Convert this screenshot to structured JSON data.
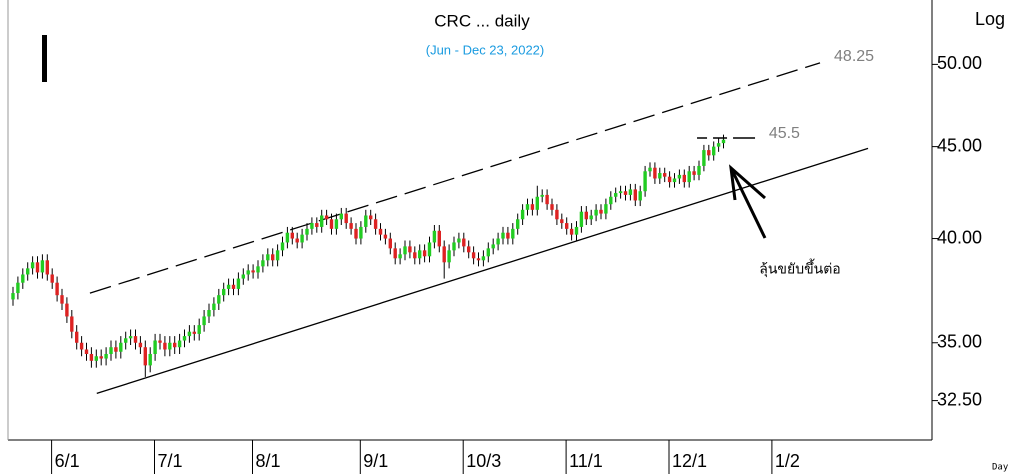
{
  "chart_data": {
    "type": "candlestick",
    "title": "CRC ... daily",
    "subtitle": "(Jun - Dec 23, 2022)",
    "scale_label": "Log",
    "period_label": "Day",
    "log_scale": true,
    "grid": false,
    "up_color": "#22cc22",
    "down_color": "#dd2222",
    "wick_color": "#000000",
    "ylim": [
      30.9,
      54.3
    ],
    "yticks": [
      {
        "value": 50,
        "label": "50.00"
      },
      {
        "value": 45,
        "label": "45.00"
      },
      {
        "value": 40,
        "label": "40.00"
      },
      {
        "value": 35,
        "label": "35.00"
      },
      {
        "value": 32.5,
        "label": "32.50"
      }
    ],
    "categories": [
      null,
      null,
      null,
      null,
      "6/1",
      null,
      null,
      null,
      null,
      null,
      null,
      null,
      null,
      null,
      null,
      null,
      null,
      null,
      null,
      null,
      null,
      null,
      null,
      null,
      null,
      "7/1",
      null,
      null,
      null,
      null,
      null,
      null,
      null,
      null,
      null,
      null,
      null,
      null,
      null,
      null,
      null,
      null,
      null,
      null,
      null,
      "8/1",
      null,
      null,
      null,
      null,
      null,
      null,
      null,
      null,
      null,
      null,
      null,
      null,
      null,
      null,
      null,
      null,
      null,
      null,
      null,
      null,
      null,
      "9/1",
      null,
      null,
      null,
      null,
      null,
      null,
      null,
      null,
      null,
      null,
      null,
      null,
      null,
      null,
      null,
      null,
      null,
      null,
      null,
      null,
      "10/3",
      null,
      null,
      null,
      null,
      null,
      null,
      null,
      null,
      null,
      null,
      null,
      null,
      null,
      null,
      null,
      null,
      null,
      null,
      null,
      null,
      "11/1",
      null,
      null,
      null,
      null,
      null,
      null,
      null,
      null,
      null,
      null,
      null,
      null,
      null,
      null,
      null,
      null,
      null,
      null,
      null,
      null,
      "12/1",
      null,
      null,
      null,
      null,
      null,
      null,
      null,
      null,
      null,
      null,
      null,
      null,
      null,
      null,
      null,
      null,
      null,
      null,
      null,
      null,
      "1/2"
    ],
    "open": [
      37.0,
      37.3,
      37.8,
      38.2,
      38.5,
      38.8,
      38.3,
      38.9,
      38.2,
      37.8,
      37.2,
      36.8,
      36.2,
      35.5,
      35.0,
      34.7,
      34.5,
      34.2,
      34.4,
      34.3,
      34.5,
      34.8,
      34.6,
      35.0,
      35.2,
      35.3,
      35.0,
      34.8,
      34.0,
      34.5,
      35.1,
      35.0,
      34.7,
      35.0,
      34.8,
      35.1,
      35.3,
      35.5,
      35.4,
      35.8,
      36.2,
      36.5,
      36.8,
      37.2,
      37.5,
      37.7,
      37.5,
      38.0,
      38.2,
      38.4,
      38.3,
      38.6,
      38.9,
      39.2,
      38.9,
      39.4,
      39.8,
      40.3,
      40.0,
      39.8,
      40.2,
      40.5,
      40.8,
      40.6,
      41.2,
      41.0,
      40.5,
      41.0,
      41.3,
      40.8,
      40.5,
      40.0,
      40.6,
      41.2,
      41.0,
      40.5,
      40.2,
      40.0,
      39.5,
      39.0,
      39.2,
      39.6,
      39.3,
      39.0,
      39.4,
      39.1,
      39.8,
      40.4,
      39.6,
      38.8,
      39.4,
      39.8,
      40.0,
      39.6,
      39.3,
      39.0,
      38.9,
      39.1,
      39.5,
      39.7,
      40.0,
      40.3,
      40.0,
      40.5,
      41.0,
      41.5,
      41.8,
      41.5,
      42.2,
      42.3,
      41.8,
      41.5,
      41.0,
      40.8,
      40.5,
      40.2,
      40.6,
      41.4,
      41.0,
      41.2,
      41.5,
      41.3,
      41.8,
      42.2,
      42.4,
      42.5,
      42.3,
      42.6,
      42.0,
      42.5,
      43.6,
      43.8,
      43.2,
      43.5,
      43.3,
      43.0,
      43.2,
      43.4,
      43.0,
      43.6,
      43.4,
      43.9,
      44.8,
      44.5,
      45.0,
      45.2,
      null,
      null,
      null,
      null,
      null,
      null
    ],
    "high": [
      37.6,
      38.1,
      38.5,
      38.8,
      39.1,
      39.1,
      39.2,
      39.2,
      38.5,
      38.1,
      37.5,
      37.1,
      36.5,
      35.8,
      35.3,
      35.0,
      34.8,
      34.7,
      34.7,
      34.8,
      35.1,
      35.1,
      35.3,
      35.5,
      35.6,
      35.6,
      35.3,
      35.1,
      34.8,
      35.4,
      35.4,
      35.3,
      35.3,
      35.3,
      35.4,
      35.6,
      35.8,
      35.8,
      36.1,
      36.5,
      36.8,
      37.1,
      37.5,
      37.8,
      38.0,
      38.0,
      38.3,
      38.5,
      38.7,
      38.7,
      38.9,
      39.2,
      39.5,
      39.5,
      39.7,
      40.1,
      40.6,
      40.6,
      40.3,
      40.5,
      40.8,
      41.1,
      41.1,
      41.5,
      41.5,
      41.3,
      41.3,
      41.6,
      41.6,
      41.1,
      40.8,
      40.9,
      41.5,
      41.5,
      41.3,
      40.8,
      40.5,
      40.3,
      39.8,
      39.5,
      39.9,
      39.9,
      39.6,
      39.7,
      39.7,
      40.1,
      40.7,
      40.7,
      39.9,
      39.7,
      40.1,
      40.3,
      40.3,
      39.9,
      39.6,
      39.3,
      39.4,
      39.8,
      40.0,
      40.3,
      40.6,
      40.6,
      40.8,
      41.3,
      41.8,
      42.1,
      42.1,
      42.8,
      42.6,
      42.6,
      42.1,
      41.8,
      41.3,
      41.1,
      40.8,
      40.9,
      41.7,
      41.7,
      41.5,
      41.8,
      41.8,
      42.1,
      42.5,
      42.7,
      42.8,
      42.8,
      42.9,
      42.9,
      42.8,
      43.9,
      44.1,
      44.1,
      43.8,
      43.8,
      43.6,
      43.5,
      43.7,
      43.7,
      43.9,
      43.9,
      44.2,
      45.1,
      45.1,
      45.3,
      45.5,
      45.7,
      null,
      null,
      null,
      null,
      null,
      null
    ],
    "low": [
      36.7,
      37.0,
      37.5,
      37.9,
      38.2,
      38.0,
      38.0,
      37.9,
      37.5,
      36.9,
      36.5,
      35.9,
      35.2,
      34.7,
      34.4,
      34.2,
      33.9,
      33.9,
      34.0,
      34.0,
      34.2,
      34.3,
      34.3,
      34.7,
      34.9,
      34.7,
      34.5,
      33.5,
      33.7,
      34.2,
      34.7,
      34.4,
      34.4,
      34.5,
      34.5,
      34.8,
      35.0,
      35.1,
      35.1,
      35.5,
      35.9,
      36.2,
      36.5,
      36.9,
      37.2,
      37.2,
      37.2,
      37.7,
      37.9,
      38.0,
      38.0,
      38.3,
      38.6,
      38.6,
      38.6,
      39.1,
      39.5,
      39.7,
      39.5,
      39.5,
      39.9,
      40.2,
      40.3,
      40.3,
      40.7,
      40.2,
      40.2,
      40.7,
      40.5,
      40.2,
      39.7,
      39.7,
      40.3,
      40.7,
      40.2,
      39.9,
      39.7,
      39.2,
      38.7,
      38.7,
      38.9,
      39.0,
      38.7,
      38.7,
      38.8,
      38.8,
      39.5,
      39.3,
      38.0,
      38.5,
      39.1,
      39.5,
      39.3,
      39.0,
      38.7,
      38.6,
      38.6,
      38.8,
      39.2,
      39.4,
      39.7,
      39.7,
      39.7,
      40.2,
      40.7,
      41.2,
      41.2,
      41.2,
      41.9,
      41.5,
      41.2,
      40.7,
      40.5,
      40.2,
      39.9,
      39.9,
      40.3,
      40.7,
      40.7,
      40.9,
      41.0,
      41.0,
      41.5,
      41.9,
      42.1,
      42.0,
      42.0,
      41.7,
      41.7,
      42.2,
      43.3,
      42.9,
      42.9,
      43.0,
      42.7,
      42.7,
      42.9,
      42.7,
      42.7,
      43.1,
      43.1,
      43.6,
      44.2,
      44.2,
      44.7,
      44.9,
      null,
      null,
      null,
      null,
      null,
      null
    ],
    "close": [
      37.3,
      37.8,
      38.2,
      38.5,
      38.8,
      38.3,
      38.9,
      38.2,
      37.8,
      37.2,
      36.8,
      36.2,
      35.5,
      35.0,
      34.7,
      34.5,
      34.2,
      34.4,
      34.3,
      34.5,
      34.8,
      34.6,
      35.0,
      35.2,
      35.3,
      35.0,
      34.8,
      34.0,
      34.5,
      35.1,
      35.0,
      34.7,
      35.0,
      34.8,
      35.1,
      35.3,
      35.5,
      35.4,
      35.8,
      36.2,
      36.5,
      36.8,
      37.2,
      37.5,
      37.7,
      37.5,
      38.0,
      38.2,
      38.4,
      38.3,
      38.6,
      38.9,
      39.2,
      38.9,
      39.4,
      39.8,
      40.3,
      40.0,
      39.8,
      40.2,
      40.5,
      40.8,
      40.6,
      41.2,
      41.0,
      40.5,
      41.0,
      41.3,
      40.8,
      40.5,
      40.0,
      40.6,
      41.2,
      41.0,
      40.5,
      40.2,
      40.0,
      39.5,
      39.0,
      39.2,
      39.6,
      39.3,
      39.0,
      39.4,
      39.1,
      39.8,
      40.4,
      39.6,
      38.8,
      39.4,
      39.8,
      40.0,
      39.6,
      39.3,
      39.0,
      38.9,
      39.1,
      39.5,
      39.7,
      40.0,
      40.3,
      40.0,
      40.5,
      41.0,
      41.5,
      41.8,
      41.5,
      42.2,
      42.3,
      41.8,
      41.5,
      41.0,
      40.8,
      40.5,
      40.2,
      40.6,
      41.4,
      41.0,
      41.2,
      41.5,
      41.3,
      41.8,
      42.2,
      42.4,
      42.5,
      42.3,
      42.6,
      42.0,
      42.5,
      43.6,
      43.8,
      43.2,
      43.5,
      43.3,
      43.0,
      43.2,
      43.4,
      43.0,
      43.6,
      43.4,
      43.9,
      44.8,
      44.5,
      45.0,
      45.2,
      45.4,
      null,
      null,
      null,
      null,
      null,
      null
    ],
    "trendlines": [
      {
        "style": "dashed",
        "x": [
          15.7,
          164.7
        ],
        "y": [
          37.3,
          50.1
        ]
      },
      {
        "style": "solid",
        "x": [
          17.1,
          174.5
        ],
        "y": [
          32.8,
          44.9
        ]
      }
    ],
    "upper_target": 48.25,
    "resistance": {
      "value": 45.5,
      "x": [
        139.6,
        151.8
      ]
    },
    "annotation": "ลุ้นขยับขึ้นต่อ"
  }
}
